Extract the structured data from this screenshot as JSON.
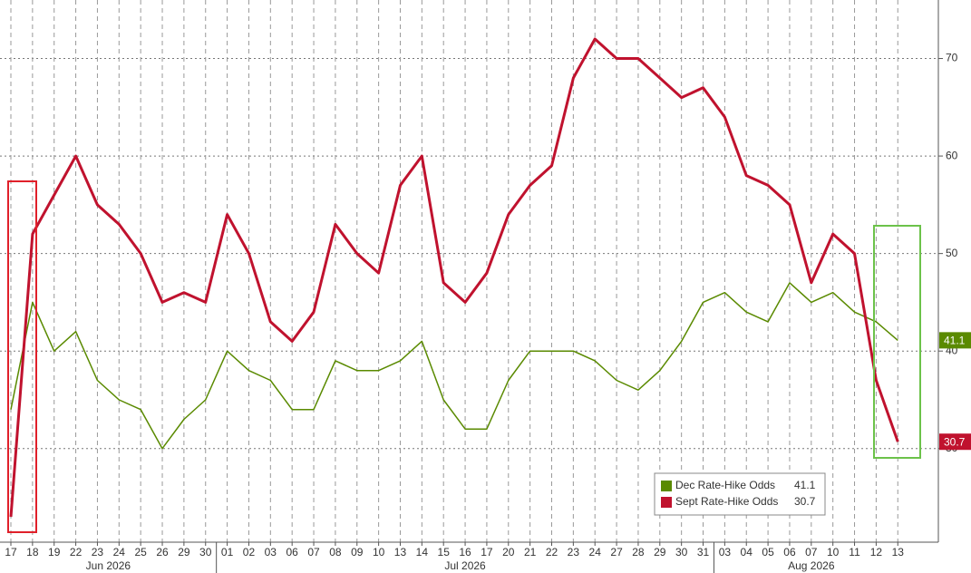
{
  "chart_data": {
    "type": "line",
    "x": [
      "17",
      "18",
      "19",
      "22",
      "23",
      "24",
      "25",
      "26",
      "29",
      "30",
      "01",
      "02",
      "03",
      "06",
      "07",
      "08",
      "09",
      "10",
      "13",
      "14",
      "15",
      "16",
      "17",
      "20",
      "21",
      "22",
      "23",
      "24",
      "27",
      "28",
      "29",
      "30",
      "31",
      "03",
      "04",
      "05",
      "06",
      "07",
      "10",
      "11",
      "12",
      "13"
    ],
    "month_labels": [
      "Jun 2026",
      "Jul 2026",
      "Aug 2026"
    ],
    "series": [
      {
        "name": "Dec Rate-Hike Odds",
        "color": "#5a8a00",
        "values": [
          34,
          45,
          40,
          42,
          37,
          35,
          34,
          30,
          33,
          35,
          40,
          38,
          37,
          34,
          34,
          39,
          38,
          38,
          39,
          41,
          35,
          32,
          32,
          37,
          40,
          40,
          40,
          39,
          37,
          36,
          38,
          41,
          45,
          46,
          44,
          43,
          47,
          45,
          46,
          44,
          43,
          41.1
        ]
      },
      {
        "name": "Sept Rate-Hike Odds",
        "color": "#c0122e",
        "values": [
          23,
          52,
          56,
          60,
          55,
          53,
          50,
          45,
          46,
          45,
          54,
          50,
          43,
          41,
          44,
          53,
          50,
          48,
          57,
          60,
          47,
          45,
          48,
          54,
          57,
          59,
          68,
          72,
          70,
          70,
          68,
          66,
          67,
          64,
          58,
          57,
          55,
          47,
          52,
          50,
          37,
          30.7
        ]
      }
    ],
    "ylim": [
      20.4,
      76
    ],
    "yticks": [
      30,
      40,
      50,
      60,
      70
    ],
    "grid": true,
    "legend": "bottom-right"
  }
}
